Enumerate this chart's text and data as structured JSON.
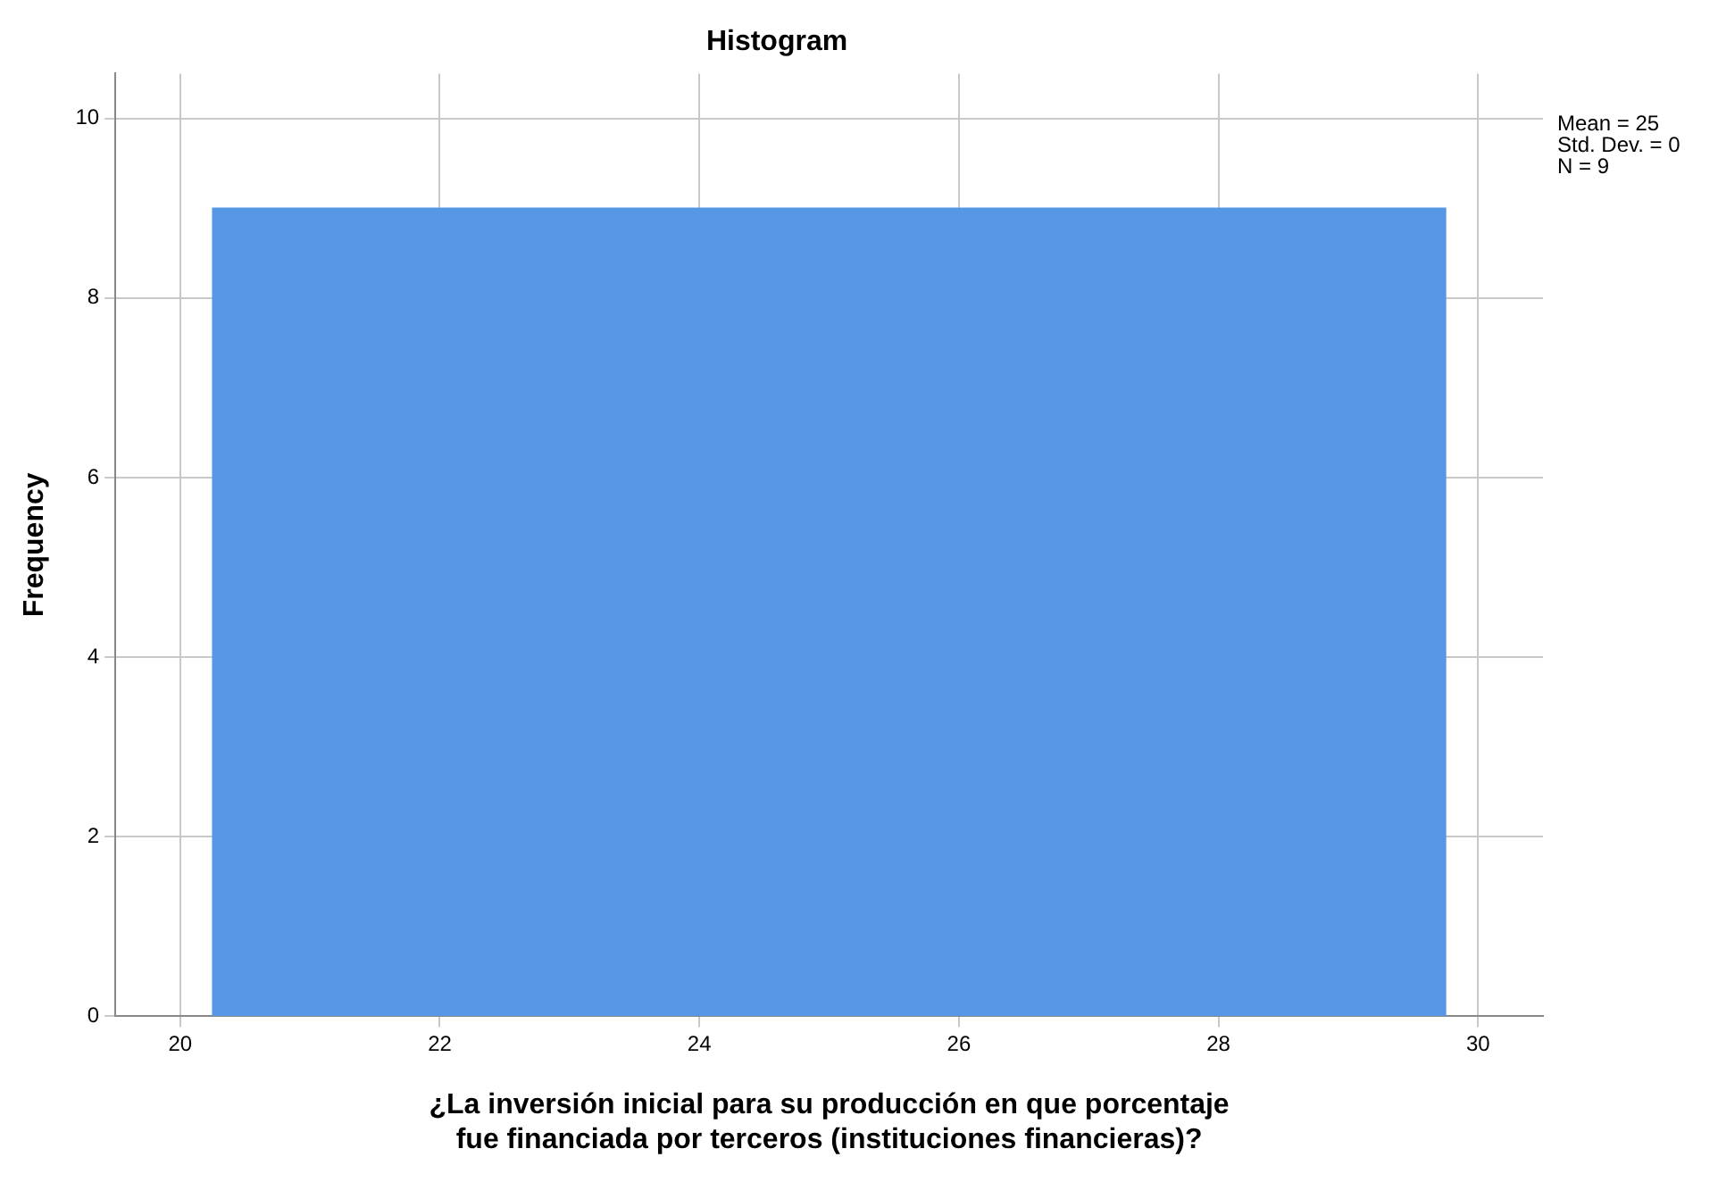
{
  "chart_data": {
    "type": "histogram",
    "title": "Histogram",
    "xlabel": "¿La inversión inicial para su producción en que porcentaje fue financiada por terceros (instituciones financieras)?",
    "ylabel": "Frequency",
    "bins": [
      20.25,
      29.75
    ],
    "values": [
      9
    ],
    "color": "#5596e5",
    "xlim": [
      19.5,
      30.5
    ],
    "xticks": [
      20,
      22,
      24,
      26,
      28,
      30
    ],
    "ylim": [
      0,
      10.5
    ],
    "yticks": [
      0,
      2,
      4,
      6,
      8,
      10
    ],
    "grid": true,
    "legend": false,
    "annotations": [
      "Mean = 25",
      "Std. Dev. = 0",
      "N = 9"
    ]
  }
}
